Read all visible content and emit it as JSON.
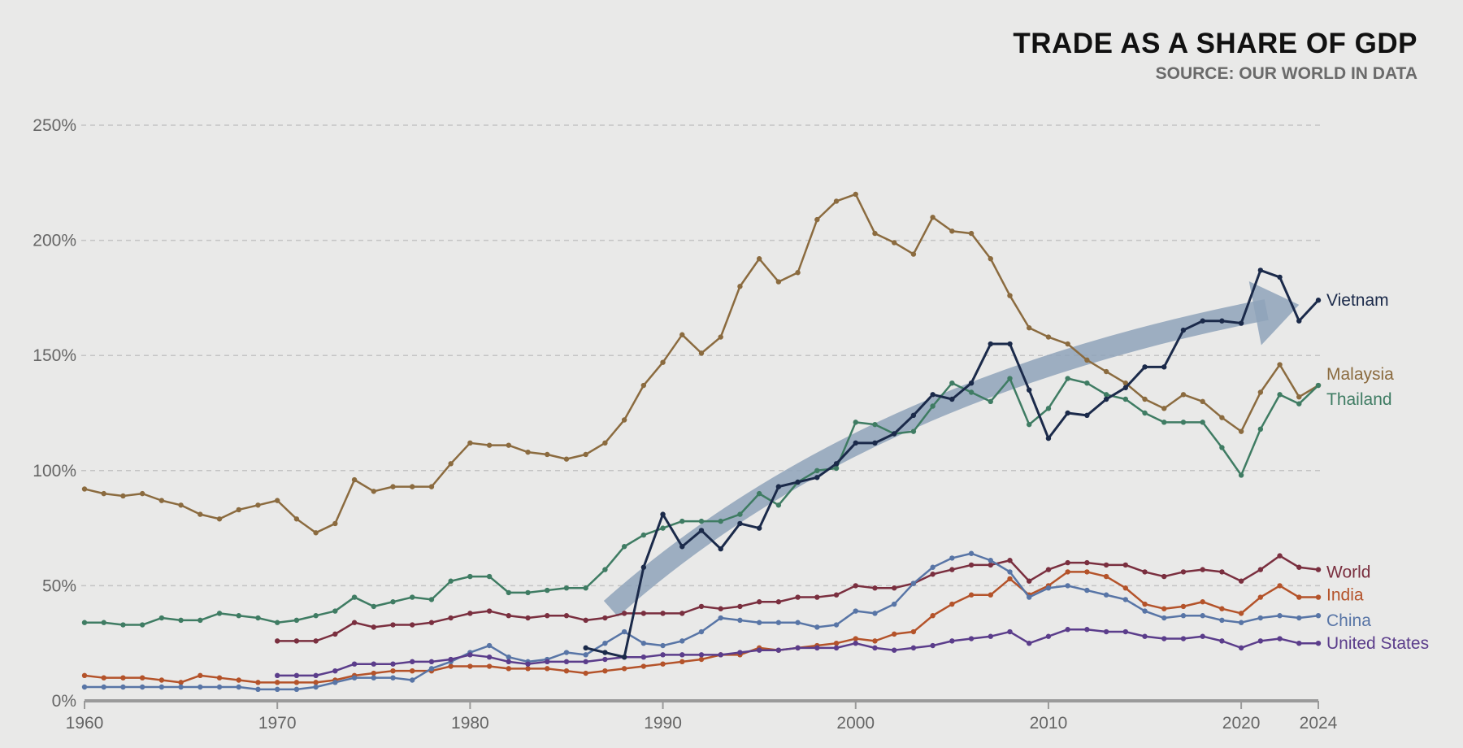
{
  "chart_data": {
    "type": "line",
    "title": "TRADE AS A SHARE OF GDP",
    "subtitle": "SOURCE: OUR WORLD IN DATA",
    "xlabel": "",
    "ylabel": "",
    "xlim": [
      1960,
      2024
    ],
    "ylim": [
      0,
      250
    ],
    "grid": "horizontal dashed",
    "x_ticks": [
      1960,
      1970,
      1980,
      1990,
      2000,
      2010,
      2020,
      2024
    ],
    "x_tick_labels": [
      "1960",
      "1970",
      "1980",
      "1990",
      "2000",
      "2010",
      "2020",
      "2024"
    ],
    "y_ticks": [
      0,
      50,
      100,
      150,
      200,
      250
    ],
    "y_tick_labels": [
      "0%",
      "50%",
      "100%",
      "150%",
      "200%",
      "250%"
    ],
    "series": [
      {
        "name": "Malaysia",
        "color": "#8b6b3f",
        "start": 1960,
        "values": [
          92,
          90,
          89,
          90,
          87,
          85,
          81,
          79,
          83,
          85,
          87,
          79,
          73,
          77,
          96,
          91,
          93,
          93,
          93,
          103,
          112,
          111,
          111,
          108,
          107,
          105,
          107,
          112,
          122,
          137,
          147,
          159,
          151,
          158,
          180,
          192,
          182,
          186,
          209,
          217,
          220,
          203,
          199,
          194,
          210,
          204,
          203,
          192,
          176,
          162,
          158,
          155,
          148,
          143,
          138,
          131,
          127,
          133,
          130,
          123,
          117,
          134,
          146,
          132,
          137
        ]
      },
      {
        "name": "Thailand",
        "color": "#3f7c63",
        "start": 1960,
        "values": [
          34,
          34,
          33,
          33,
          36,
          35,
          35,
          38,
          37,
          36,
          34,
          35,
          37,
          39,
          45,
          41,
          43,
          45,
          44,
          52,
          54,
          54,
          47,
          47,
          48,
          49,
          49,
          57,
          67,
          72,
          75,
          78,
          78,
          78,
          81,
          90,
          85,
          95,
          100,
          101,
          121,
          120,
          116,
          117,
          128,
          138,
          134,
          130,
          140,
          120,
          127,
          140,
          138,
          133,
          131,
          125,
          121,
          121,
          121,
          110,
          98,
          118,
          133,
          129,
          137
        ]
      },
      {
        "name": "World",
        "color": "#7a2f3f",
        "start": 1970,
        "values": [
          26,
          26,
          26,
          29,
          34,
          32,
          33,
          33,
          34,
          36,
          38,
          39,
          37,
          36,
          37,
          37,
          35,
          36,
          38,
          38,
          38,
          38,
          41,
          40,
          41,
          43,
          43,
          45,
          45,
          46,
          50,
          49,
          49,
          51,
          55,
          57,
          59,
          59,
          61,
          52,
          57,
          60,
          60,
          59,
          59,
          56,
          54,
          56,
          57,
          56,
          52,
          57,
          63,
          58,
          57
        ]
      },
      {
        "name": "India",
        "color": "#b4532a",
        "start": 1960,
        "values": [
          11,
          10,
          10,
          10,
          9,
          8,
          11,
          10,
          9,
          8,
          8,
          8,
          8,
          9,
          11,
          12,
          13,
          13,
          13,
          15,
          15,
          15,
          14,
          14,
          14,
          13,
          12,
          13,
          14,
          15,
          16,
          17,
          18,
          20,
          20,
          23,
          22,
          23,
          24,
          25,
          27,
          26,
          29,
          30,
          37,
          42,
          46,
          46,
          53,
          46,
          50,
          56,
          56,
          54,
          49,
          42,
          40,
          41,
          43,
          40,
          38,
          45,
          50,
          45,
          45
        ]
      },
      {
        "name": "China",
        "color": "#5875a6",
        "start": 1960,
        "values": [
          6,
          6,
          6,
          6,
          6,
          6,
          6,
          6,
          6,
          5,
          5,
          5,
          6,
          8,
          10,
          10,
          10,
          9,
          14,
          17,
          21,
          24,
          19,
          17,
          18,
          21,
          20,
          25,
          30,
          25,
          24,
          26,
          30,
          36,
          35,
          34,
          34,
          34,
          32,
          33,
          39,
          38,
          42,
          51,
          58,
          62,
          64,
          61,
          56,
          45,
          49,
          50,
          48,
          46,
          44,
          39,
          36,
          37,
          37,
          35,
          34,
          36,
          37,
          36,
          37
        ]
      },
      {
        "name": "United States",
        "color": "#5b3d8b",
        "start": 1970,
        "values": [
          11,
          11,
          11,
          13,
          16,
          16,
          16,
          17,
          17,
          18,
          20,
          19,
          17,
          16,
          17,
          17,
          17,
          18,
          19,
          19,
          20,
          20,
          20,
          20,
          21,
          22,
          22,
          23,
          23,
          23,
          25,
          23,
          22,
          23,
          24,
          26,
          27,
          28,
          30,
          25,
          28,
          31,
          31,
          30,
          30,
          28,
          27,
          27,
          28,
          26,
          23,
          26,
          27,
          25,
          25
        ]
      },
      {
        "name": "Vietnam",
        "color": "#1b2a4a",
        "start": 1986,
        "values": [
          23,
          21,
          19,
          58,
          81,
          67,
          74,
          66,
          77,
          75,
          93,
          95,
          97,
          103,
          112,
          112,
          116,
          124,
          133,
          131,
          138,
          155,
          155,
          135,
          114,
          125,
          124,
          131,
          136,
          145,
          145,
          161,
          165,
          165,
          164,
          187,
          184,
          165,
          174
        ]
      }
    ],
    "legend": [
      {
        "name": "Vietnam",
        "y": 174
      },
      {
        "name": "Malaysia",
        "y": 142
      },
      {
        "name": "Thailand",
        "y": 131
      },
      {
        "name": "World",
        "y": 56
      },
      {
        "name": "India",
        "y": 46
      },
      {
        "name": "China",
        "y": 35
      },
      {
        "name": "United States",
        "y": 25
      }
    ],
    "annotation_arrow": {
      "color": "#8fa3ba",
      "from": [
        1987.3,
        40
      ],
      "control": [
        2000,
        135
      ],
      "to": [
        2023,
        172
      ]
    }
  }
}
